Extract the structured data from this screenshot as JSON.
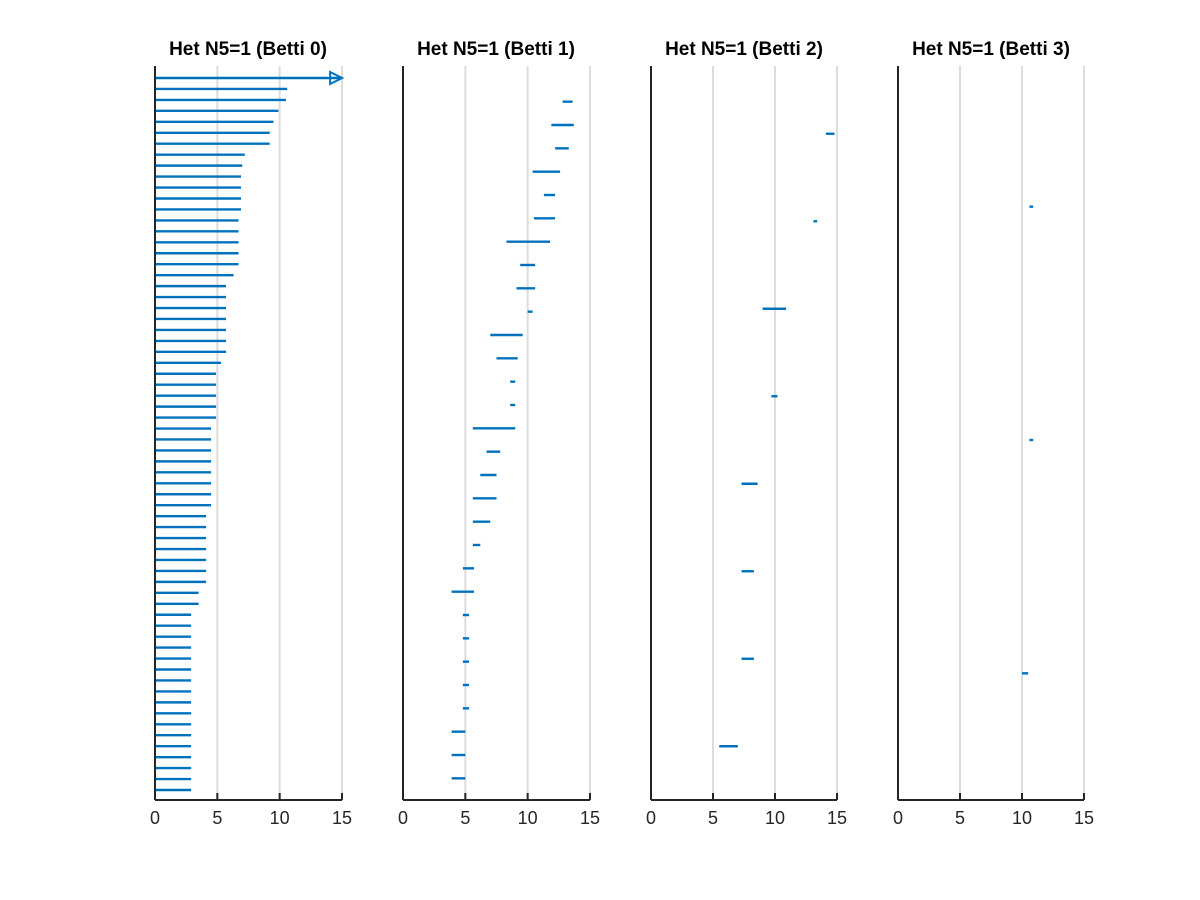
{
  "chart_data": [
    {
      "type": "barcode",
      "title": "Het N5=1 (Betti 0)",
      "xlabel": "",
      "ylabel": "",
      "xlim": [
        0,
        15
      ],
      "xticks": [
        0,
        5,
        10,
        15
      ],
      "grid": "x-major",
      "color": "#0072bd",
      "intervals": [
        [
          0,
          null
        ],
        [
          0,
          10.6
        ],
        [
          0,
          10.5
        ],
        [
          0,
          9.9
        ],
        [
          0,
          9.5
        ],
        [
          0,
          9.2
        ],
        [
          0,
          9.2
        ],
        [
          0,
          7.2
        ],
        [
          0,
          7.0
        ],
        [
          0,
          6.9
        ],
        [
          0,
          6.9
        ],
        [
          0,
          6.9
        ],
        [
          0,
          6.9
        ],
        [
          0,
          6.7
        ],
        [
          0,
          6.7
        ],
        [
          0,
          6.7
        ],
        [
          0,
          6.7
        ],
        [
          0,
          6.7
        ],
        [
          0,
          6.3
        ],
        [
          0,
          5.7
        ],
        [
          0,
          5.7
        ],
        [
          0,
          5.7
        ],
        [
          0,
          5.7
        ],
        [
          0,
          5.7
        ],
        [
          0,
          5.7
        ],
        [
          0,
          5.7
        ],
        [
          0,
          5.3
        ],
        [
          0,
          4.9
        ],
        [
          0,
          4.9
        ],
        [
          0,
          4.9
        ],
        [
          0,
          4.9
        ],
        [
          0,
          4.9
        ],
        [
          0,
          4.5
        ],
        [
          0,
          4.5
        ],
        [
          0,
          4.5
        ],
        [
          0,
          4.5
        ],
        [
          0,
          4.5
        ],
        [
          0,
          4.5
        ],
        [
          0,
          4.5
        ],
        [
          0,
          4.5
        ],
        [
          0,
          4.1
        ],
        [
          0,
          4.1
        ],
        [
          0,
          4.1
        ],
        [
          0,
          4.1
        ],
        [
          0,
          4.1
        ],
        [
          0,
          4.1
        ],
        [
          0,
          4.1
        ],
        [
          0,
          3.5
        ],
        [
          0,
          3.5
        ],
        [
          0,
          2.9
        ],
        [
          0,
          2.9
        ],
        [
          0,
          2.9
        ],
        [
          0,
          2.9
        ],
        [
          0,
          2.9
        ],
        [
          0,
          2.9
        ],
        [
          0,
          2.9
        ],
        [
          0,
          2.9
        ],
        [
          0,
          2.9
        ],
        [
          0,
          2.9
        ],
        [
          0,
          2.9
        ],
        [
          0,
          2.9
        ],
        [
          0,
          2.9
        ],
        [
          0,
          2.9
        ],
        [
          0,
          2.9
        ],
        [
          0,
          2.9
        ],
        [
          0,
          2.9
        ]
      ]
    },
    {
      "type": "barcode",
      "title": "Het N5=1 (Betti 1)",
      "xlabel": "",
      "ylabel": "",
      "xlim": [
        0,
        15
      ],
      "xticks": [
        0,
        5,
        10,
        15
      ],
      "grid": "x-major",
      "color": "#0072bd",
      "intervals": [
        [
          12.8,
          13.6
        ],
        [
          11.9,
          13.7
        ],
        [
          12.2,
          13.3
        ],
        [
          10.4,
          12.6
        ],
        [
          11.3,
          12.2
        ],
        [
          10.5,
          12.2
        ],
        [
          8.3,
          11.8
        ],
        [
          9.4,
          10.6
        ],
        [
          9.1,
          10.6
        ],
        [
          10.0,
          10.4
        ],
        [
          7.0,
          9.6
        ],
        [
          7.5,
          9.2
        ],
        [
          8.6,
          9.0
        ],
        [
          8.6,
          9.0
        ],
        [
          5.6,
          9.0
        ],
        [
          6.7,
          7.8
        ],
        [
          6.2,
          7.5
        ],
        [
          5.6,
          7.5
        ],
        [
          5.6,
          7.0
        ],
        [
          5.6,
          6.2
        ],
        [
          4.8,
          5.7
        ],
        [
          3.9,
          5.7
        ],
        [
          4.8,
          5.3
        ],
        [
          4.8,
          5.3
        ],
        [
          4.8,
          5.3
        ],
        [
          4.8,
          5.3
        ],
        [
          4.8,
          5.3
        ],
        [
          3.9,
          5.0
        ],
        [
          3.9,
          5.0
        ],
        [
          3.9,
          5.0
        ]
      ]
    },
    {
      "type": "barcode",
      "title": "Het N5=1 (Betti 2)",
      "xlabel": "",
      "ylabel": "",
      "xlim": [
        0,
        15
      ],
      "xticks": [
        0,
        5,
        10,
        15
      ],
      "grid": "x-major",
      "color": "#0072bd",
      "intervals": [
        [
          14.1,
          14.8
        ],
        [
          13.1,
          13.4
        ],
        [
          9.0,
          10.9
        ],
        [
          9.7,
          10.2
        ],
        [
          7.3,
          8.6
        ],
        [
          7.3,
          8.3
        ],
        [
          7.3,
          8.3
        ],
        [
          5.5,
          7.0
        ]
      ]
    },
    {
      "type": "barcode",
      "title": "Het N5=1 (Betti 3)",
      "xlabel": "",
      "ylabel": "",
      "xlim": [
        0,
        15
      ],
      "xticks": [
        0,
        5,
        10,
        15
      ],
      "grid": "x-major",
      "color": "#0072bd",
      "intervals": [
        [
          10.6,
          10.9
        ],
        [
          10.6,
          10.9
        ],
        [
          10.0,
          10.5
        ]
      ]
    }
  ]
}
